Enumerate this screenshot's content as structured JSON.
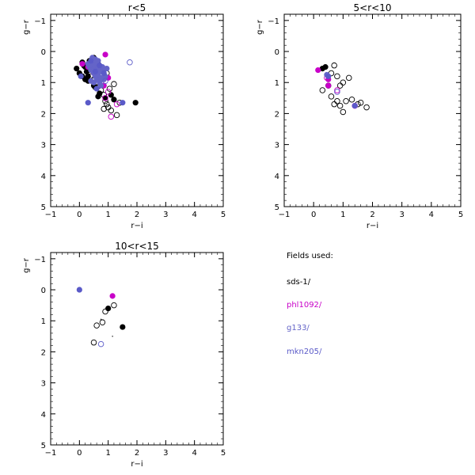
{
  "chart_data": [
    {
      "type": "scatter",
      "title": "r<5",
      "xlabel": "r−i",
      "ylabel": "g−r",
      "xlim": [
        -1,
        5
      ],
      "ylim": [
        -1.2,
        5.0
      ],
      "y_inverted": true,
      "xticks": [
        -1,
        0,
        1,
        2,
        3,
        4,
        5
      ],
      "yticks": [
        -1,
        0,
        1,
        2,
        3,
        4,
        5
      ],
      "series": [
        {
          "name": "sds-1/",
          "marker": "filled",
          "points": [
            [
              -0.1,
              0.55
            ],
            [
              0.0,
              0.7
            ],
            [
              0.1,
              0.8
            ],
            [
              0.1,
              0.35
            ],
            [
              0.2,
              0.5
            ],
            [
              0.25,
              0.65
            ],
            [
              0.3,
              0.8
            ],
            [
              0.35,
              0.3
            ],
            [
              0.4,
              0.45
            ],
            [
              0.45,
              0.6
            ],
            [
              0.5,
              0.2
            ],
            [
              0.55,
              0.7
            ],
            [
              0.6,
              0.5
            ],
            [
              0.65,
              0.4
            ],
            [
              0.3,
              0.95
            ],
            [
              0.5,
              1.1
            ],
            [
              0.7,
              1.35
            ],
            [
              0.65,
              1.45
            ],
            [
              0.9,
              1.5
            ],
            [
              1.1,
              1.4
            ],
            [
              1.2,
              1.55
            ],
            [
              1.95,
              1.65
            ],
            [
              0.2,
              0.9
            ],
            [
              0.15,
              0.45
            ]
          ]
        },
        {
          "name": "sds-1/",
          "marker": "open",
          "points": [
            [
              0.4,
              0.8
            ],
            [
              0.5,
              0.9
            ],
            [
              0.6,
              1.0
            ],
            [
              0.7,
              1.1
            ],
            [
              0.75,
              1.25
            ],
            [
              0.85,
              1.4
            ],
            [
              0.9,
              1.6
            ],
            [
              1.0,
              1.8
            ],
            [
              1.1,
              1.9
            ],
            [
              1.3,
              2.05
            ],
            [
              0.95,
              1.7
            ],
            [
              0.8,
              0.6
            ],
            [
              0.95,
              0.7
            ],
            [
              0.55,
              1.15
            ],
            [
              0.3,
              0.6
            ],
            [
              1.05,
              1.2
            ],
            [
              1.4,
              1.65
            ],
            [
              1.2,
              1.05
            ],
            [
              0.85,
              1.85
            ]
          ]
        },
        {
          "name": "phl1092/",
          "marker": "filled",
          "points": [
            [
              0.1,
              0.4
            ],
            [
              0.3,
              0.5
            ],
            [
              0.5,
              0.7
            ],
            [
              0.7,
              0.9
            ],
            [
              0.9,
              0.1
            ],
            [
              0.85,
              1.1
            ],
            [
              0.6,
              0.35
            ],
            [
              1.0,
              0.85
            ]
          ]
        },
        {
          "name": "phl1092/",
          "marker": "open",
          "points": [
            [
              1.1,
              2.1
            ],
            [
              1.3,
              1.7
            ],
            [
              0.9,
              1.5
            ],
            [
              1.0,
              1.3
            ]
          ]
        },
        {
          "name": "g133/",
          "marker": "filled",
          "points": [
            [
              0.3,
              0.4
            ],
            [
              0.35,
              0.5
            ],
            [
              0.4,
              0.6
            ],
            [
              0.45,
              0.45
            ],
            [
              0.5,
              0.55
            ],
            [
              0.5,
              0.7
            ],
            [
              0.55,
              0.4
            ],
            [
              0.55,
              0.8
            ],
            [
              0.6,
              0.6
            ],
            [
              0.6,
              0.9
            ],
            [
              0.65,
              0.5
            ],
            [
              0.65,
              0.75
            ],
            [
              0.7,
              0.6
            ],
            [
              0.7,
              1.0
            ],
            [
              0.75,
              0.85
            ],
            [
              0.8,
              0.65
            ],
            [
              0.8,
              0.5
            ],
            [
              0.85,
              0.9
            ],
            [
              0.9,
              0.8
            ],
            [
              0.45,
              0.2
            ],
            [
              0.55,
              0.25
            ],
            [
              0.4,
              0.95
            ],
            [
              0.75,
              1.1
            ],
            [
              0.95,
              0.55
            ],
            [
              0.5,
              1.0
            ],
            [
              0.65,
              0.3
            ]
          ]
        },
        {
          "name": "mkn205/",
          "marker": "filled",
          "points": [
            [
              0.3,
              1.65
            ],
            [
              1.5,
              1.65
            ],
            [
              0.05,
              0.8
            ],
            [
              0.55,
              0.65
            ],
            [
              0.7,
              0.45
            ],
            [
              0.6,
              1.2
            ],
            [
              0.85,
              0.7
            ],
            [
              0.4,
              0.3
            ]
          ]
        },
        {
          "name": "mkn205/",
          "marker": "open",
          "points": [
            [
              1.75,
              0.35
            ],
            [
              0.9,
              0.95
            ]
          ]
        }
      ]
    },
    {
      "type": "scatter",
      "title": "5<r<10",
      "xlabel": "r−i",
      "ylabel": "g−r",
      "xlim": [
        -1,
        5
      ],
      "ylim": [
        -1.2,
        5.0
      ],
      "y_inverted": true,
      "xticks": [
        -1,
        0,
        1,
        2,
        3,
        4,
        5
      ],
      "yticks": [
        -1,
        0,
        1,
        2,
        3,
        4,
        5
      ],
      "series": [
        {
          "name": "sds-1/",
          "marker": "filled",
          "points": [
            [
              0.3,
              0.55
            ],
            [
              0.4,
              0.5
            ]
          ]
        },
        {
          "name": "sds-1/",
          "marker": "open",
          "points": [
            [
              0.7,
              0.45
            ],
            [
              0.6,
              0.7
            ],
            [
              0.8,
              0.8
            ],
            [
              1.0,
              1.0
            ],
            [
              1.2,
              0.85
            ],
            [
              0.3,
              1.25
            ],
            [
              0.6,
              1.45
            ],
            [
              0.8,
              1.6
            ],
            [
              0.9,
              1.75
            ],
            [
              1.1,
              1.6
            ],
            [
              1.3,
              1.55
            ],
            [
              1.5,
              1.7
            ],
            [
              1.6,
              1.65
            ],
            [
              1.8,
              1.8
            ],
            [
              1.0,
              1.95
            ],
            [
              0.7,
              1.7
            ],
            [
              0.5,
              1.1
            ],
            [
              0.9,
              1.1
            ]
          ]
        },
        {
          "name": "phl1092/",
          "marker": "filled",
          "points": [
            [
              0.15,
              0.6
            ],
            [
              0.5,
              0.9
            ],
            [
              0.5,
              1.1
            ]
          ]
        },
        {
          "name": "phl1092/",
          "marker": "open",
          "points": [
            [
              0.8,
              1.25
            ],
            [
              1.4,
              1.75
            ],
            [
              0.45,
              0.85
            ]
          ]
        },
        {
          "name": "g133/",
          "marker": "filled",
          "points": [
            [
              0.45,
              0.75
            ]
          ]
        },
        {
          "name": "mkn205/",
          "marker": "filled",
          "points": [
            [
              1.4,
              1.75
            ],
            [
              0.5,
              0.8
            ]
          ]
        },
        {
          "name": "mkn205/",
          "marker": "open",
          "points": [
            [
              0.8,
              1.3
            ]
          ]
        }
      ]
    },
    {
      "type": "scatter",
      "title": "10<r<15",
      "xlabel": "r−i",
      "ylabel": "g−r",
      "xlim": [
        -1,
        5
      ],
      "ylim": [
        -1.2,
        5.0
      ],
      "y_inverted": true,
      "xticks": [
        -1,
        0,
        1,
        2,
        3,
        4,
        5
      ],
      "yticks": [
        -1,
        0,
        1,
        2,
        3,
        4,
        5
      ],
      "series": [
        {
          "name": "sds-1/",
          "marker": "filled",
          "points": [
            [
              1.0,
              0.6
            ],
            [
              1.5,
              1.2
            ]
          ]
        },
        {
          "name": "sds-1/",
          "marker": "open",
          "points": [
            [
              1.2,
              0.5
            ],
            [
              0.9,
              0.7
            ],
            [
              0.6,
              1.15
            ],
            [
              0.8,
              1.05
            ],
            [
              0.5,
              1.7
            ]
          ]
        },
        {
          "name": "sds-1/",
          "marker": "dot",
          "points": [
            [
              0.75,
              0.95
            ],
            [
              1.15,
              1.5
            ]
          ]
        },
        {
          "name": "phl1092/",
          "marker": "filled",
          "points": [
            [
              1.15,
              0.2
            ]
          ]
        },
        {
          "name": "mkn205/",
          "marker": "filled",
          "points": [
            [
              0.0,
              0.0
            ]
          ]
        },
        {
          "name": "mkn205/",
          "marker": "open",
          "points": [
            [
              0.75,
              1.75
            ]
          ]
        }
      ]
    }
  ],
  "legend": {
    "title": "Fields used:",
    "items": [
      {
        "label": "sds-1/",
        "color": "#000000"
      },
      {
        "label": "phl1092/",
        "color": "#c800c8"
      },
      {
        "label": "g133/",
        "color": "#6464c8"
      },
      {
        "label": "mkn205/",
        "color": "#5a5ac8"
      }
    ]
  },
  "colors": {
    "sds-1/": "#000000",
    "phl1092/": "#c800c8",
    "g133/": "#6464c8",
    "mkn205/": "#5a5ac8",
    "axes": "#000000"
  }
}
